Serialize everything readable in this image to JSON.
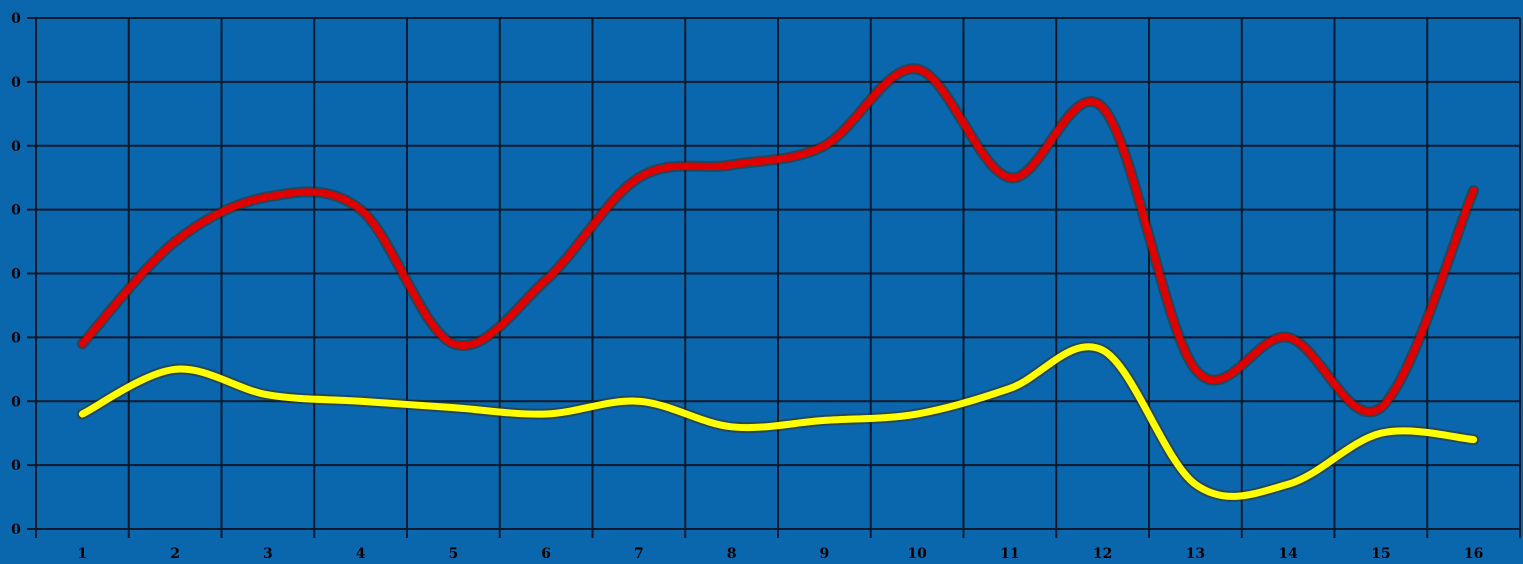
{
  "chart_data": {
    "type": "line",
    "x": [
      "1",
      "2",
      "3",
      "4",
      "5",
      "6",
      "7",
      "8",
      "9",
      "10",
      "11",
      "12",
      "13",
      "14",
      "15",
      "16"
    ],
    "y_tick_labels": [
      "0",
      "0",
      "0",
      "0",
      "0",
      "0",
      "0",
      "0",
      "0"
    ],
    "ylim": [
      0,
      8
    ],
    "grid": true,
    "series": [
      {
        "color": "#e00000",
        "values": [
          2.9,
          4.5,
          5.2,
          5.0,
          2.9,
          3.9,
          5.5,
          5.7,
          6.0,
          7.2,
          5.5,
          6.6,
          2.5,
          3.0,
          1.9,
          5.3
        ]
      },
      {
        "color": "#ffff00",
        "values": [
          1.8,
          2.5,
          2.1,
          2.0,
          1.9,
          1.8,
          2.0,
          1.6,
          1.7,
          1.8,
          2.2,
          2.8,
          0.7,
          0.7,
          1.5,
          1.4
        ]
      }
    ],
    "colors": {
      "background": "#0a67ad",
      "grid": "#041a2e"
    }
  }
}
